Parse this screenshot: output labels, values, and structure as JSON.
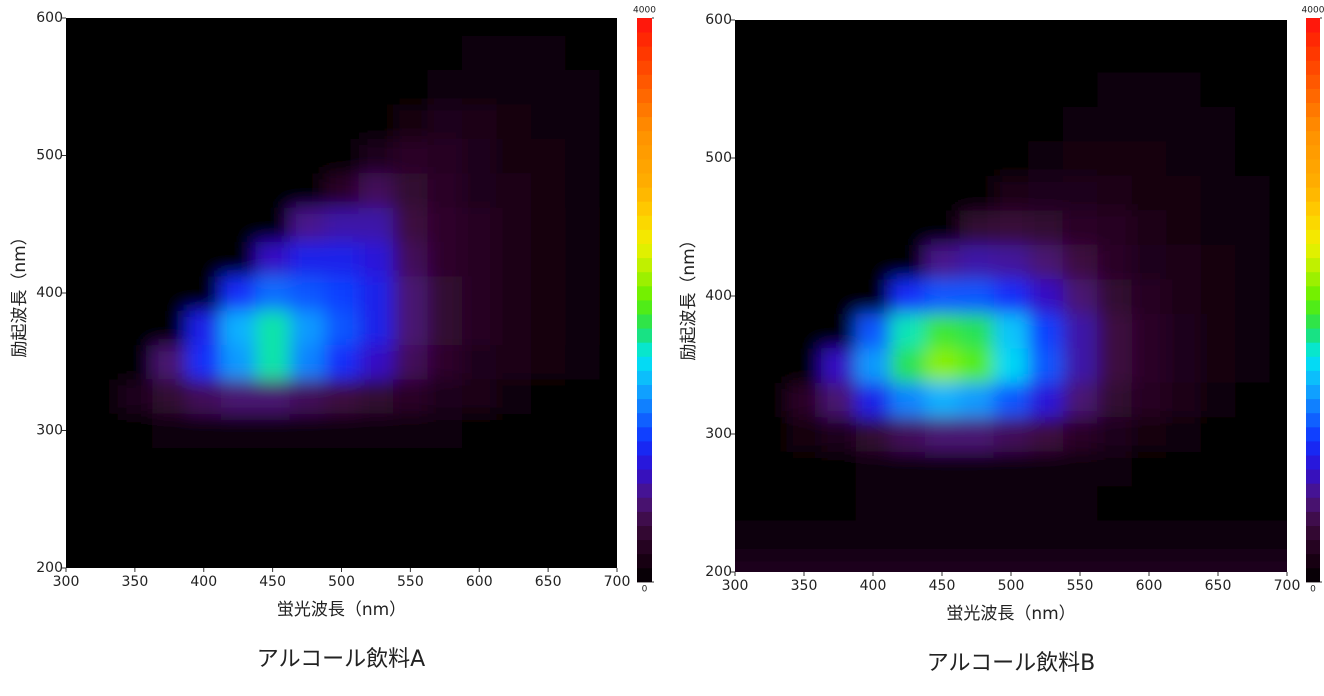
{
  "chart_data": [
    {
      "type": "heatmap",
      "xlabel": "蛍光波長（nm）",
      "ylabel": "励起波長（nm）",
      "caption": "アルコール飲料A",
      "x": [
        300,
        325,
        350,
        375,
        400,
        425,
        450,
        475,
        500,
        525,
        550,
        575,
        600,
        625,
        650,
        675,
        700
      ],
      "y": [
        200,
        225,
        250,
        275,
        300,
        325,
        350,
        375,
        400,
        425,
        450,
        475,
        500,
        525,
        550,
        575,
        600
      ],
      "z": [
        [
          0,
          0,
          0,
          0,
          0,
          0,
          0,
          0,
          0,
          0,
          0,
          0,
          0,
          0,
          0,
          0,
          0
        ],
        [
          0,
          0,
          0,
          0,
          0,
          0,
          0,
          0,
          0,
          0,
          0,
          0,
          0,
          0,
          0,
          0,
          0
        ],
        [
          0,
          0,
          0,
          0,
          0,
          0,
          0,
          0,
          0,
          0,
          0,
          0,
          0,
          0,
          0,
          0,
          0
        ],
        [
          0,
          0,
          0,
          0,
          0,
          0,
          0,
          0,
          0,
          0,
          0,
          0,
          0,
          0,
          0,
          0,
          0
        ],
        [
          0,
          0,
          0,
          70,
          70,
          70,
          70,
          70,
          70,
          70,
          70,
          70,
          0,
          0,
          0,
          0,
          0
        ],
        [
          0,
          0,
          210,
          350,
          490,
          560,
          560,
          490,
          420,
          350,
          280,
          210,
          180,
          100,
          0,
          0,
          0
        ],
        [
          0,
          0,
          0,
          560,
          980,
          1330,
          1700,
          1260,
          980,
          770,
          490,
          320,
          210,
          180,
          140,
          70,
          0
        ],
        [
          0,
          0,
          0,
          0,
          910,
          1400,
          1700,
          1330,
          1120,
          910,
          560,
          350,
          250,
          180,
          140,
          100,
          0
        ],
        [
          0,
          0,
          0,
          0,
          0,
          980,
          1190,
          1120,
          1050,
          910,
          560,
          350,
          250,
          180,
          140,
          100,
          0
        ],
        [
          0,
          0,
          0,
          0,
          0,
          0,
          770,
          910,
          910,
          840,
          490,
          320,
          250,
          180,
          140,
          100,
          0
        ],
        [
          0,
          0,
          0,
          0,
          0,
          0,
          0,
          630,
          700,
          700,
          420,
          320,
          250,
          180,
          140,
          100,
          0
        ],
        [
          0,
          0,
          0,
          0,
          0,
          0,
          0,
          0,
          280,
          490,
          350,
          280,
          210,
          180,
          140,
          70,
          0
        ],
        [
          0,
          0,
          0,
          0,
          0,
          0,
          0,
          0,
          0,
          210,
          280,
          250,
          210,
          140,
          140,
          70,
          0
        ],
        [
          0,
          0,
          0,
          0,
          0,
          0,
          0,
          0,
          0,
          0,
          140,
          210,
          180,
          140,
          100,
          70,
          0
        ],
        [
          0,
          0,
          0,
          0,
          0,
          0,
          0,
          0,
          0,
          0,
          0,
          100,
          100,
          100,
          100,
          70,
          0
        ],
        [
          0,
          0,
          0,
          0,
          0,
          0,
          0,
          0,
          0,
          0,
          0,
          0,
          70,
          70,
          70,
          0,
          0
        ],
        [
          0,
          0,
          0,
          0,
          0,
          0,
          0,
          0,
          0,
          0,
          0,
          0,
          0,
          0,
          0,
          0,
          0
        ]
      ],
      "xlim": [
        300,
        700
      ],
      "ylim": [
        200,
        600
      ],
      "xticks": [
        300,
        350,
        400,
        450,
        500,
        550,
        600,
        650,
        700
      ],
      "yticks": [
        200,
        300,
        400,
        500,
        600
      ],
      "zlim": [
        0,
        4000
      ],
      "zticks": [
        0,
        4000
      ],
      "colormap": [
        "#000000",
        "#1e0018",
        "#3a0a3a",
        "#4c1480",
        "#3010d0",
        "#1030ff",
        "#1070ff",
        "#10b0ff",
        "#00e8f0",
        "#20e060",
        "#60f000",
        "#b0f000",
        "#f0f000",
        "#ffd000",
        "#ffb000",
        "#ffa000",
        "#ff9000",
        "#ff7000",
        "#ff5000",
        "#ff3000",
        "#ff1010"
      ]
    },
    {
      "type": "heatmap",
      "xlabel": "蛍光波長（nm）",
      "ylabel": "励起波長（nm）",
      "caption": "アルコール飲料B",
      "x": [
        300,
        325,
        350,
        375,
        400,
        425,
        450,
        475,
        500,
        525,
        550,
        575,
        600,
        625,
        650,
        675,
        700
      ],
      "y": [
        200,
        225,
        250,
        275,
        300,
        325,
        350,
        375,
        400,
        425,
        450,
        475,
        500,
        525,
        550,
        575,
        600
      ],
      "z": [
        [
          210,
          210,
          210,
          210,
          210,
          210,
          210,
          210,
          210,
          210,
          210,
          210,
          210,
          210,
          210,
          210,
          210
        ],
        [
          100,
          100,
          100,
          100,
          100,
          100,
          100,
          100,
          100,
          100,
          100,
          100,
          100,
          100,
          100,
          100,
          100
        ],
        [
          40,
          40,
          40,
          40,
          70,
          70,
          70,
          70,
          70,
          70,
          70,
          40,
          40,
          40,
          40,
          40,
          40
        ],
        [
          40,
          40,
          40,
          40,
          70,
          70,
          70,
          70,
          70,
          70,
          70,
          70,
          40,
          40,
          40,
          40,
          40
        ],
        [
          0,
          0,
          140,
          210,
          350,
          490,
          560,
          560,
          490,
          420,
          280,
          210,
          140,
          100,
          0,
          0,
          0
        ],
        [
          0,
          0,
          280,
          560,
          910,
          1260,
          1400,
          1330,
          1120,
          840,
          560,
          350,
          250,
          180,
          100,
          0,
          0
        ],
        [
          0,
          0,
          0,
          770,
          1330,
          1820,
          2100,
          1960,
          1540,
          1120,
          700,
          420,
          280,
          210,
          140,
          70,
          0
        ],
        [
          0,
          0,
          0,
          0,
          1120,
          1680,
          1890,
          1820,
          1470,
          1050,
          700,
          420,
          280,
          210,
          140,
          70,
          0
        ],
        [
          0,
          0,
          0,
          0,
          0,
          980,
          1120,
          1120,
          980,
          770,
          560,
          350,
          250,
          180,
          140,
          70,
          0
        ],
        [
          0,
          0,
          0,
          0,
          0,
          0,
          630,
          700,
          670,
          560,
          420,
          280,
          210,
          180,
          140,
          70,
          0
        ],
        [
          0,
          0,
          0,
          0,
          0,
          0,
          0,
          350,
          390,
          350,
          280,
          250,
          180,
          140,
          100,
          70,
          0
        ],
        [
          0,
          0,
          0,
          0,
          0,
          0,
          0,
          0,
          180,
          210,
          210,
          180,
          140,
          140,
          100,
          70,
          0
        ],
        [
          0,
          0,
          0,
          0,
          0,
          0,
          0,
          0,
          0,
          100,
          140,
          140,
          140,
          100,
          70,
          0,
          0
        ],
        [
          0,
          0,
          0,
          0,
          0,
          0,
          0,
          0,
          0,
          0,
          70,
          100,
          100,
          100,
          70,
          0,
          0
        ],
        [
          0,
          0,
          0,
          0,
          0,
          0,
          0,
          0,
          0,
          0,
          0,
          70,
          70,
          70,
          0,
          0,
          0
        ],
        [
          0,
          0,
          0,
          0,
          0,
          0,
          0,
          0,
          0,
          0,
          0,
          0,
          0,
          0,
          0,
          0,
          0
        ],
        [
          0,
          0,
          0,
          0,
          0,
          0,
          0,
          0,
          0,
          0,
          0,
          0,
          0,
          0,
          0,
          0,
          0
        ]
      ],
      "xlim": [
        300,
        700
      ],
      "ylim": [
        200,
        600
      ],
      "xticks": [
        300,
        350,
        400,
        450,
        500,
        550,
        600,
        650,
        700
      ],
      "yticks": [
        200,
        300,
        400,
        500,
        600
      ],
      "zlim": [
        0,
        4000
      ],
      "zticks": [
        0,
        4000
      ],
      "colormap": [
        "#000000",
        "#1e0018",
        "#3a0a3a",
        "#4c1480",
        "#3010d0",
        "#1030ff",
        "#1070ff",
        "#10b0ff",
        "#00e8f0",
        "#20e060",
        "#60f000",
        "#b0f000",
        "#f0f000",
        "#ffd000",
        "#ffb000",
        "#ffa000",
        "#ff9000",
        "#ff7000",
        "#ff5000",
        "#ff3000",
        "#ff1010"
      ]
    }
  ]
}
